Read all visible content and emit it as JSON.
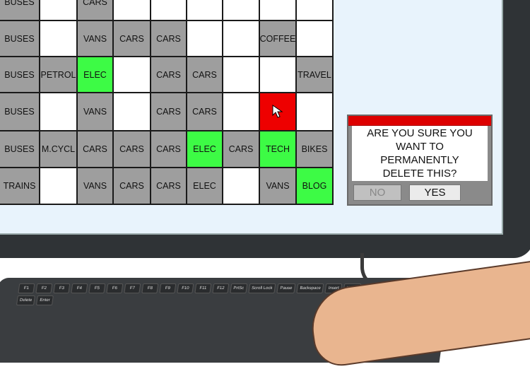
{
  "grid": {
    "rows": [
      [
        {
          "t": "BUSES",
          "c": "gray"
        },
        {
          "t": "",
          "c": "white"
        },
        {
          "t": "CARS",
          "c": "gray"
        },
        {
          "t": "",
          "c": "white"
        },
        {
          "t": "",
          "c": "white"
        },
        {
          "t": "",
          "c": "white"
        },
        {
          "t": "",
          "c": "white"
        },
        {
          "t": "",
          "c": "white"
        },
        {
          "t": "",
          "c": "white"
        }
      ],
      [
        {
          "t": "BUSES",
          "c": "gray"
        },
        {
          "t": "",
          "c": "white"
        },
        {
          "t": "VANS",
          "c": "gray"
        },
        {
          "t": "CARS",
          "c": "gray"
        },
        {
          "t": "CARS",
          "c": "gray"
        },
        {
          "t": "",
          "c": "white"
        },
        {
          "t": "",
          "c": "white"
        },
        {
          "t": "COFFEE",
          "c": "gray"
        },
        {
          "t": "",
          "c": "white"
        }
      ],
      [
        {
          "t": "BUSES",
          "c": "gray"
        },
        {
          "t": "PETROL",
          "c": "gray"
        },
        {
          "t": "ELEC",
          "c": "green"
        },
        {
          "t": "",
          "c": "white"
        },
        {
          "t": "CARS",
          "c": "gray"
        },
        {
          "t": "CARS",
          "c": "gray"
        },
        {
          "t": "",
          "c": "white"
        },
        {
          "t": "",
          "c": "white"
        },
        {
          "t": "TRAVEL",
          "c": "gray"
        }
      ],
      [
        {
          "t": "BUSES",
          "c": "gray"
        },
        {
          "t": "",
          "c": "white"
        },
        {
          "t": "VANS",
          "c": "gray"
        },
        {
          "t": "",
          "c": "white"
        },
        {
          "t": "CARS",
          "c": "gray"
        },
        {
          "t": "CARS",
          "c": "gray"
        },
        {
          "t": "",
          "c": "white"
        },
        {
          "t": "",
          "c": "red",
          "cursor": true
        },
        {
          "t": "",
          "c": "white"
        }
      ],
      [
        {
          "t": "BUSES",
          "c": "gray"
        },
        {
          "t": "M.CYCL",
          "c": "gray"
        },
        {
          "t": "CARS",
          "c": "gray"
        },
        {
          "t": "CARS",
          "c": "gray"
        },
        {
          "t": "CARS",
          "c": "gray"
        },
        {
          "t": "ELEC",
          "c": "green"
        },
        {
          "t": "CARS",
          "c": "gray"
        },
        {
          "t": "TECH",
          "c": "green"
        },
        {
          "t": "BIKES",
          "c": "gray"
        }
      ],
      [
        {
          "t": "TRAINS",
          "c": "gray"
        },
        {
          "t": "",
          "c": "white"
        },
        {
          "t": "VANS",
          "c": "gray"
        },
        {
          "t": "CARS",
          "c": "gray"
        },
        {
          "t": "CARS",
          "c": "gray"
        },
        {
          "t": "ELEC",
          "c": "gray"
        },
        {
          "t": "",
          "c": "white"
        },
        {
          "t": "VANS",
          "c": "gray"
        },
        {
          "t": "BLOG",
          "c": "green"
        }
      ]
    ]
  },
  "colors": {
    "gray": "#9e9e9e",
    "white": "#ffffff",
    "green": "#3dfb45",
    "red": "#ee0000"
  },
  "dialog": {
    "message": "ARE YOU SURE YOU WANT TO PERMANENTLY DELETE THIS?",
    "no_label": "NO",
    "yes_label": "YES"
  },
  "keyboard": {
    "keys": [
      "F1",
      "F2",
      "F3",
      "F4",
      "F5",
      "F6",
      "F7",
      "F8",
      "F9",
      "F10",
      "F11",
      "F12",
      "PrtSc",
      "Scroll Lock",
      "Pause",
      "Backspace",
      "Insert",
      "Home",
      "Delete",
      "Enter"
    ]
  }
}
